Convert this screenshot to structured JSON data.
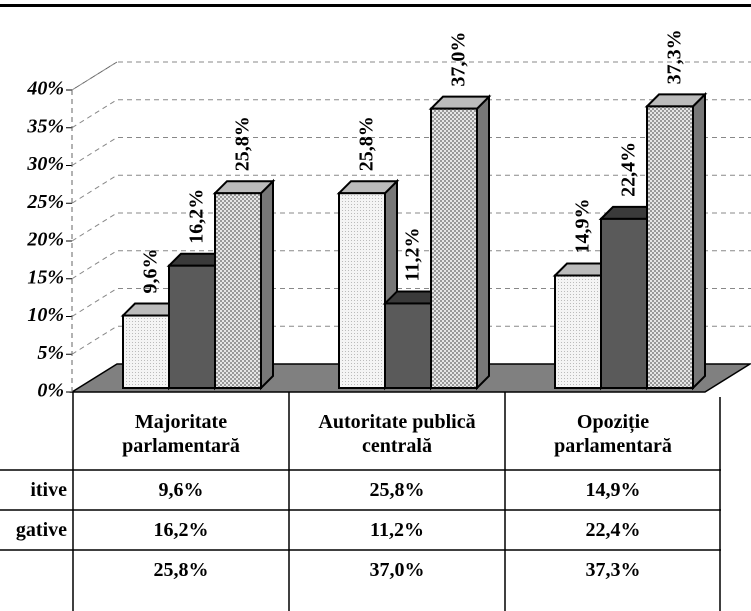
{
  "chart_data": {
    "type": "bar3d",
    "categories": [
      "Majoritate parlamentară",
      "Autoritate publică centrală",
      "Opoziție parlamentară"
    ],
    "series": [
      {
        "name": "itive",
        "color": "#eeeeee",
        "values": [
          9.6,
          25.8,
          14.9
        ],
        "value_labels": [
          "9,6%",
          "25,8%",
          "14,9%"
        ]
      },
      {
        "name": "gative",
        "color": "#5a5a5a",
        "values": [
          16.2,
          11.2,
          22.4
        ],
        "value_labels": [
          "16,2%",
          "11,2%",
          "22,4%"
        ]
      },
      {
        "name": null,
        "color": "#cfcfcf",
        "values": [
          25.8,
          37.0,
          37.3
        ],
        "value_labels": [
          "25,8%",
          "37,0%",
          "37,3%"
        ]
      }
    ],
    "ylim": [
      0,
      40
    ],
    "yticks": [
      {
        "value": 0,
        "label": "0%"
      },
      {
        "value": 5,
        "label": "5%"
      },
      {
        "value": 10,
        "label": "10%"
      },
      {
        "value": 15,
        "label": "15%"
      },
      {
        "value": 20,
        "label": "20%"
      },
      {
        "value": 25,
        "label": "25%"
      },
      {
        "value": 30,
        "label": "30%"
      },
      {
        "value": 35,
        "label": "35%"
      },
      {
        "value": 40,
        "label": "40%"
      }
    ],
    "grid": true
  }
}
